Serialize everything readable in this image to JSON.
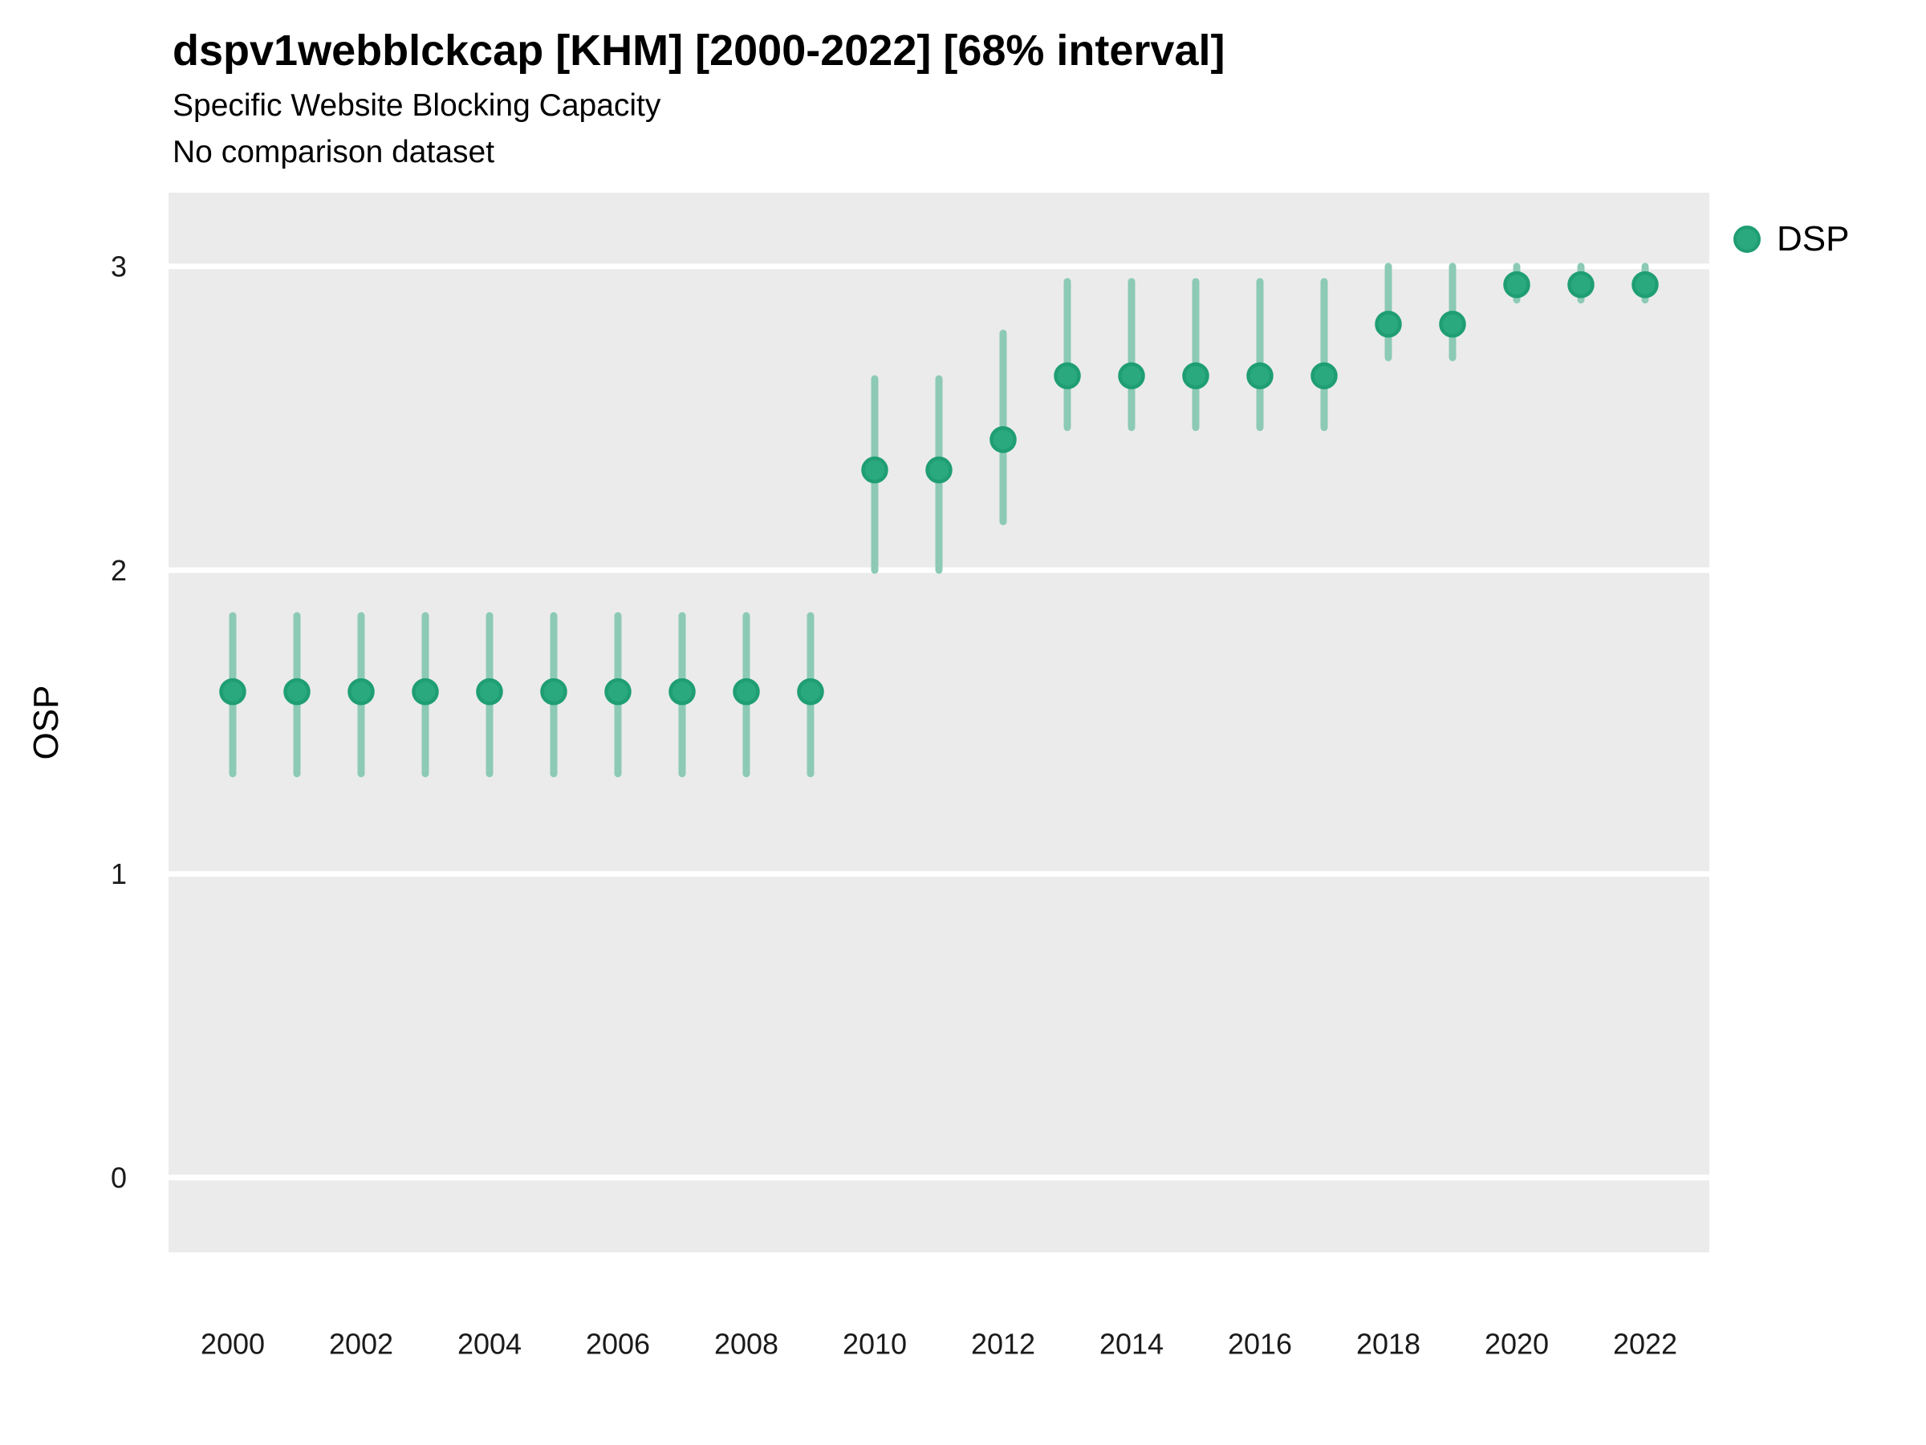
{
  "header": {
    "title": "dspv1webblckcap [KHM] [2000-2022] [68% interval]",
    "subtitle1": "Specific Website Blocking Capacity",
    "subtitle2": "No comparison dataset"
  },
  "legend": {
    "series_label": "DSP"
  },
  "axes": {
    "y_label": "OSP",
    "y_ticks": [
      0,
      1,
      2,
      3
    ],
    "x_ticks": [
      2000,
      2002,
      2004,
      2006,
      2008,
      2010,
      2012,
      2014,
      2016,
      2018,
      2020,
      2022
    ]
  },
  "colors": {
    "panel_bg": "#ebebeb",
    "gridline": "#ffffff",
    "point_fill": "#2aa87e",
    "point_stroke": "#1f9e73",
    "interval_line": "#8ccab5",
    "tick_text": "#1a1a1a"
  },
  "chart_data": {
    "type": "scatter",
    "title": "dspv1webblckcap [KHM] [2000-2022] [68% interval]",
    "subtitle": "Specific Website Blocking Capacity",
    "caption": "No comparison dataset",
    "interval": "68%",
    "xlabel": "",
    "ylabel": "OSP",
    "xlim": [
      1999,
      2023
    ],
    "ylim": [
      -0.246,
      3.243
    ],
    "grid": "major-horizontal",
    "legend_position": "right",
    "x": [
      2000,
      2001,
      2002,
      2003,
      2004,
      2005,
      2006,
      2007,
      2008,
      2009,
      2010,
      2011,
      2012,
      2013,
      2014,
      2015,
      2016,
      2017,
      2018,
      2019,
      2020,
      2021,
      2022
    ],
    "series": [
      {
        "name": "DSP",
        "values": [
          1.6,
          1.6,
          1.6,
          1.6,
          1.6,
          1.6,
          1.6,
          1.6,
          1.6,
          1.6,
          2.33,
          2.33,
          2.43,
          2.64,
          2.64,
          2.64,
          2.64,
          2.64,
          2.81,
          2.81,
          2.94,
          2.94,
          2.94
        ],
        "lower": [
          1.33,
          1.33,
          1.33,
          1.33,
          1.33,
          1.33,
          1.33,
          1.33,
          1.33,
          1.33,
          2.0,
          2.0,
          2.16,
          2.47,
          2.47,
          2.47,
          2.47,
          2.47,
          2.7,
          2.7,
          2.89,
          2.89,
          2.89
        ],
        "upper": [
          1.85,
          1.85,
          1.85,
          1.85,
          1.85,
          1.85,
          1.85,
          1.85,
          1.85,
          1.85,
          2.63,
          2.63,
          2.78,
          2.95,
          2.95,
          2.95,
          2.95,
          2.95,
          3.0,
          3.0,
          3.0,
          3.0,
          3.0
        ]
      }
    ]
  }
}
